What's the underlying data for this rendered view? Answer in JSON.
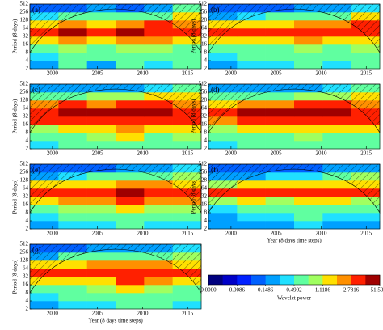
{
  "chart_data": {
    "type": "heatmap",
    "xlim": [
      1997.5,
      2016.5
    ],
    "xticks": [
      2000,
      2005,
      2010,
      2015
    ],
    "ylim": [
      2,
      512
    ],
    "yticks": [
      2,
      4,
      8,
      16,
      32,
      64,
      128,
      256,
      512
    ],
    "log_y": true,
    "colorbar": {
      "label": "Wavelet power",
      "colors": [
        "#00007f",
        "#0000c8",
        "#0020ff",
        "#0060ff",
        "#00a0ff",
        "#20e0ff",
        "#60ffa0",
        "#a0ff60",
        "#ffe000",
        "#ff9000",
        "#ff2000",
        "#a00000"
      ],
      "ticks": [
        {
          "value": 0,
          "label": "0.0000"
        },
        0.0086,
        0.1486,
        0.4902,
        1.1186,
        2.7816,
        51.5029
      ]
    },
    "panels": [
      {
        "label": "(a)",
        "ylabel": "Period (8 days)",
        "power": [
          [
            0.3,
            0.5,
            0.3,
            0.6,
            0.4,
            0.5
          ],
          [
            0.4,
            0.6,
            0.5,
            0.7,
            0.5,
            0.6
          ],
          [
            0.6,
            0.9,
            0.8,
            1.0,
            0.9,
            0.8
          ],
          [
            1.5,
            2.0,
            1.8,
            2.5,
            2.0,
            1.6
          ],
          [
            20,
            30,
            25,
            30,
            25,
            20
          ],
          [
            1.5,
            2.0,
            1.8,
            2.5,
            3.0,
            2.0
          ],
          [
            0.4,
            0.5,
            0.6,
            0.5,
            0.8,
            1.2
          ],
          [
            0.1,
            0.1,
            0.2,
            0.1,
            0.3,
            0.5
          ]
        ]
      },
      {
        "label": "(b)",
        "ylabel": "Period (8 days)",
        "power": [
          [
            0.3,
            0.4,
            0.4,
            0.5,
            0.4,
            0.5
          ],
          [
            0.4,
            0.5,
            0.5,
            0.6,
            0.5,
            0.7
          ],
          [
            0.6,
            0.8,
            0.8,
            0.9,
            0.8,
            0.9
          ],
          [
            1.2,
            1.8,
            1.6,
            2.0,
            1.8,
            1.5
          ],
          [
            15,
            25,
            20,
            25,
            20,
            18
          ],
          [
            1.3,
            1.5,
            1.6,
            2.0,
            2.5,
            3.0
          ],
          [
            0.3,
            0.4,
            0.5,
            0.5,
            0.7,
            1.5
          ],
          [
            0.1,
            0.1,
            0.1,
            0.2,
            0.2,
            0.4
          ]
        ]
      },
      {
        "label": "(c)",
        "ylabel": "Period (8 days)",
        "power": [
          [
            0.4,
            0.6,
            0.5,
            0.7,
            0.6,
            0.6
          ],
          [
            0.6,
            0.8,
            0.9,
            1.2,
            0.8,
            0.9
          ],
          [
            1.0,
            1.5,
            1.4,
            2.0,
            1.5,
            1.3
          ],
          [
            3.0,
            4.0,
            3.5,
            5.0,
            4.0,
            3.0
          ],
          [
            25,
            30,
            30,
            35,
            30,
            25
          ],
          [
            2.0,
            3.0,
            2.5,
            3.0,
            3.5,
            2.5
          ],
          [
            0.5,
            0.8,
            0.9,
            1.0,
            1.2,
            1.5
          ],
          [
            0.2,
            0.2,
            0.3,
            0.3,
            0.4,
            0.6
          ]
        ]
      },
      {
        "label": "(d)",
        "ylabel": "Period (8 days)",
        "power": [
          [
            0.4,
            0.5,
            0.5,
            0.6,
            0.5,
            0.6
          ],
          [
            0.6,
            0.7,
            0.8,
            1.0,
            0.8,
            0.8
          ],
          [
            0.9,
            1.3,
            1.2,
            1.8,
            1.4,
            1.2
          ],
          [
            2.5,
            3.5,
            3.0,
            4.5,
            3.5,
            3.0
          ],
          [
            22,
            28,
            28,
            32,
            28,
            22
          ],
          [
            1.8,
            2.5,
            2.2,
            3.0,
            3.0,
            2.5
          ],
          [
            0.5,
            0.7,
            0.8,
            0.9,
            1.1,
            1.4
          ],
          [
            0.2,
            0.2,
            0.2,
            0.3,
            0.4,
            0.5
          ]
        ]
      },
      {
        "label": "(e)",
        "ylabel": "Period (8 days)",
        "power": [
          [
            0.3,
            0.4,
            0.4,
            0.5,
            0.4,
            0.4
          ],
          [
            0.4,
            0.5,
            0.6,
            0.8,
            0.6,
            0.6
          ],
          [
            0.7,
            0.9,
            1.0,
            1.5,
            1.0,
            0.9
          ],
          [
            1.5,
            2.2,
            2.0,
            3.5,
            2.5,
            2.0
          ],
          [
            15,
            25,
            20,
            30,
            22,
            18
          ],
          [
            1.2,
            1.8,
            1.5,
            2.5,
            2.0,
            1.6
          ],
          [
            0.3,
            0.4,
            0.5,
            0.6,
            0.8,
            1.0
          ],
          [
            0.1,
            0.1,
            0.1,
            0.2,
            0.2,
            0.4
          ]
        ]
      },
      {
        "label": "(f)",
        "ylabel": "Period (8 days)",
        "xlabel": "Year (8 days time steps)",
        "power": [
          [
            0.2,
            0.3,
            0.3,
            0.4,
            0.3,
            0.3
          ],
          [
            0.3,
            0.4,
            0.4,
            0.5,
            0.4,
            0.4
          ],
          [
            0.4,
            0.6,
            0.6,
            0.8,
            0.6,
            0.5
          ],
          [
            0.9,
            1.2,
            1.1,
            1.5,
            1.2,
            1.0
          ],
          [
            4.0,
            6.0,
            5.0,
            8.0,
            6.0,
            5.0
          ],
          [
            1.0,
            1.3,
            1.2,
            1.6,
            1.8,
            1.5
          ],
          [
            0.3,
            0.3,
            0.4,
            0.4,
            0.6,
            0.9
          ],
          [
            0.1,
            0.1,
            0.1,
            0.1,
            0.2,
            0.3
          ]
        ]
      },
      {
        "label": "(g)",
        "ylabel": "Period (8 days)",
        "xlabel": "Year (8 days time steps)",
        "power": [
          [
            0.3,
            0.4,
            0.4,
            0.5,
            0.5,
            0.4
          ],
          [
            0.4,
            0.5,
            0.6,
            0.8,
            0.7,
            0.6
          ],
          [
            0.6,
            0.8,
            0.9,
            1.3,
            1.0,
            0.8
          ],
          [
            1.3,
            1.8,
            1.8,
            3.0,
            2.0,
            1.6
          ],
          [
            10,
            18,
            15,
            25,
            18,
            12
          ],
          [
            1.3,
            1.8,
            2.0,
            2.5,
            2.2,
            1.8
          ],
          [
            0.3,
            0.5,
            0.6,
            0.6,
            0.8,
            1.0
          ],
          [
            0.1,
            0.1,
            0.2,
            0.2,
            0.3,
            0.4
          ]
        ]
      }
    ]
  }
}
